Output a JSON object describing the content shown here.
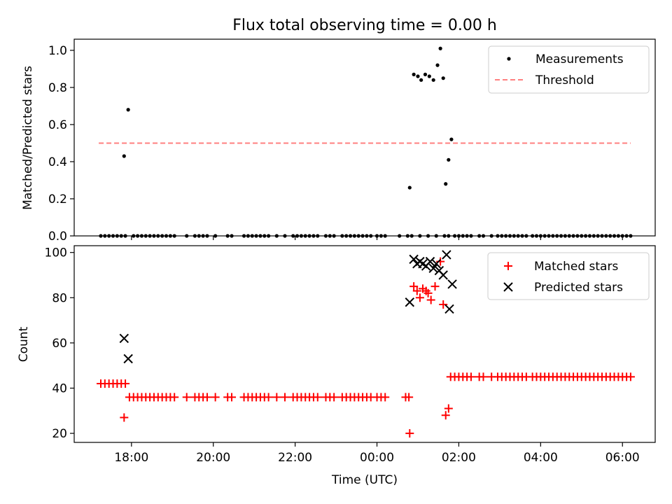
{
  "figure_title": "Flux total observing time = 0.00 h",
  "xlabel": "Time (UTC)",
  "x_ticks": [
    "18:00",
    "20:00",
    "22:00",
    "00:00",
    "02:00",
    "04:00",
    "06:00"
  ],
  "x_tick_hours": [
    18,
    20,
    22,
    24,
    26,
    28,
    30
  ],
  "colors": {
    "measurements": "#000000",
    "threshold": "#ff7f7f",
    "matched": "#ff0000",
    "predicted": "#000000"
  },
  "chart_data": [
    {
      "type": "scatter",
      "ylabel": "Matched/Predicted stars",
      "xlim_hours": [
        16.6,
        30.8
      ],
      "ylim": [
        0,
        1.06
      ],
      "y_ticks": [
        "0.0",
        "0.2",
        "0.4",
        "0.6",
        "0.8",
        "1.0"
      ],
      "y_tick_values": [
        0,
        0.2,
        0.4,
        0.6,
        0.8,
        1.0
      ],
      "legend_position": "top-right",
      "legend": [
        "Measurements",
        "Threshold"
      ],
      "threshold": {
        "value": 0.5,
        "x_range_hours": [
          17.2,
          30.2
        ]
      },
      "zero_points_hours": [
        17.25,
        17.35,
        17.45,
        17.55,
        17.65,
        17.75,
        17.85,
        18.05,
        18.15,
        18.25,
        18.35,
        18.45,
        18.55,
        18.65,
        18.75,
        18.85,
        18.95,
        19.05,
        19.35,
        19.55,
        19.65,
        19.75,
        19.85,
        20.05,
        20.35,
        20.45,
        20.75,
        20.85,
        20.95,
        21.05,
        21.15,
        21.25,
        21.35,
        21.55,
        21.75,
        21.95,
        22.05,
        22.15,
        22.25,
        22.35,
        22.45,
        22.55,
        22.75,
        22.85,
        22.95,
        23.15,
        23.25,
        23.35,
        23.45,
        23.55,
        23.65,
        23.75,
        23.85,
        24.0,
        24.1,
        24.2,
        24.55,
        24.75,
        24.85,
        25.05,
        25.25,
        25.45,
        25.65,
        25.75,
        25.9,
        26.0,
        26.1,
        26.2,
        26.3,
        26.5,
        26.6,
        26.8,
        26.95,
        27.05,
        27.15,
        27.25,
        27.35,
        27.45,
        27.55,
        27.65,
        27.8,
        27.9,
        28.0,
        28.1,
        28.2,
        28.3,
        28.4,
        28.5,
        28.6,
        28.7,
        28.8,
        28.9,
        29.0,
        29.1,
        29.2,
        29.3,
        29.4,
        29.5,
        29.6,
        29.7,
        29.8,
        29.9,
        30.0,
        30.1,
        30.2
      ],
      "measurements": [
        {
          "x": 17.82,
          "y": 0.43
        },
        {
          "x": 17.92,
          "y": 0.68
        },
        {
          "x": 24.8,
          "y": 0.26
        },
        {
          "x": 24.9,
          "y": 0.87
        },
        {
          "x": 25.0,
          "y": 0.86
        },
        {
          "x": 25.08,
          "y": 0.84
        },
        {
          "x": 25.18,
          "y": 0.87
        },
        {
          "x": 25.28,
          "y": 0.86
        },
        {
          "x": 25.38,
          "y": 0.84
        },
        {
          "x": 25.48,
          "y": 0.92
        },
        {
          "x": 25.55,
          "y": 1.01
        },
        {
          "x": 25.62,
          "y": 0.85
        },
        {
          "x": 25.68,
          "y": 0.28
        },
        {
          "x": 25.75,
          "y": 0.41
        },
        {
          "x": 25.82,
          "y": 0.52
        }
      ]
    },
    {
      "type": "scatter",
      "ylabel": "Count",
      "xlim_hours": [
        16.6,
        30.8
      ],
      "ylim": [
        16,
        103
      ],
      "y_ticks": [
        "20",
        "40",
        "60",
        "80",
        "100"
      ],
      "y_tick_values": [
        20,
        40,
        60,
        80,
        100
      ],
      "legend_position": "top-right",
      "legend": [
        "Matched stars",
        "Predicted stars"
      ],
      "matched_groups": [
        {
          "y": 42,
          "x_hours": [
            17.25,
            17.35,
            17.45,
            17.55,
            17.65,
            17.75,
            17.85
          ]
        },
        {
          "y": 36,
          "x_hours": [
            17.95,
            18.05,
            18.15,
            18.25,
            18.35,
            18.45,
            18.55,
            18.65,
            18.75,
            18.85,
            18.95,
            19.05,
            19.35,
            19.55,
            19.65,
            19.75,
            19.85,
            20.05,
            20.35,
            20.45,
            20.75,
            20.85,
            20.95,
            21.05,
            21.15,
            21.25,
            21.35,
            21.55,
            21.75,
            21.95,
            22.05,
            22.15,
            22.25,
            22.35,
            22.45,
            22.55,
            22.75,
            22.85,
            22.95,
            23.15,
            23.25,
            23.35,
            23.45,
            23.55,
            23.65,
            23.75,
            23.85,
            24.0,
            24.1,
            24.2,
            24.7,
            24.78
          ]
        },
        {
          "y": 45,
          "x_hours": [
            25.8,
            25.9,
            26.0,
            26.1,
            26.2,
            26.3,
            26.5,
            26.6,
            26.8,
            26.95,
            27.05,
            27.15,
            27.25,
            27.35,
            27.45,
            27.55,
            27.65,
            27.8,
            27.9,
            28.0,
            28.1,
            28.2,
            28.3,
            28.4,
            28.5,
            28.6,
            28.7,
            28.8,
            28.9,
            29.0,
            29.1,
            29.2,
            29.3,
            29.4,
            29.5,
            29.6,
            29.7,
            29.8,
            29.9,
            30.0,
            30.1,
            30.2
          ]
        }
      ],
      "matched_other": [
        {
          "x": 17.82,
          "y": 27
        },
        {
          "x": 24.8,
          "y": 20
        },
        {
          "x": 24.9,
          "y": 85
        },
        {
          "x": 24.98,
          "y": 83
        },
        {
          "x": 25.05,
          "y": 80
        },
        {
          "x": 25.12,
          "y": 84
        },
        {
          "x": 25.2,
          "y": 83
        },
        {
          "x": 25.25,
          "y": 82
        },
        {
          "x": 25.32,
          "y": 79
        },
        {
          "x": 25.42,
          "y": 85
        },
        {
          "x": 25.55,
          "y": 96
        },
        {
          "x": 25.62,
          "y": 77
        },
        {
          "x": 25.68,
          "y": 28
        },
        {
          "x": 25.75,
          "y": 31
        }
      ],
      "predicted": [
        {
          "x": 17.82,
          "y": 62
        },
        {
          "x": 17.92,
          "y": 53
        },
        {
          "x": 24.8,
          "y": 78
        },
        {
          "x": 24.9,
          "y": 97
        },
        {
          "x": 24.98,
          "y": 95
        },
        {
          "x": 25.05,
          "y": 96
        },
        {
          "x": 25.12,
          "y": 95
        },
        {
          "x": 25.2,
          "y": 94
        },
        {
          "x": 25.3,
          "y": 96
        },
        {
          "x": 25.38,
          "y": 93
        },
        {
          "x": 25.45,
          "y": 95
        },
        {
          "x": 25.52,
          "y": 92
        },
        {
          "x": 25.62,
          "y": 90
        },
        {
          "x": 25.7,
          "y": 99
        },
        {
          "x": 25.77,
          "y": 75
        },
        {
          "x": 25.84,
          "y": 86
        }
      ]
    }
  ]
}
